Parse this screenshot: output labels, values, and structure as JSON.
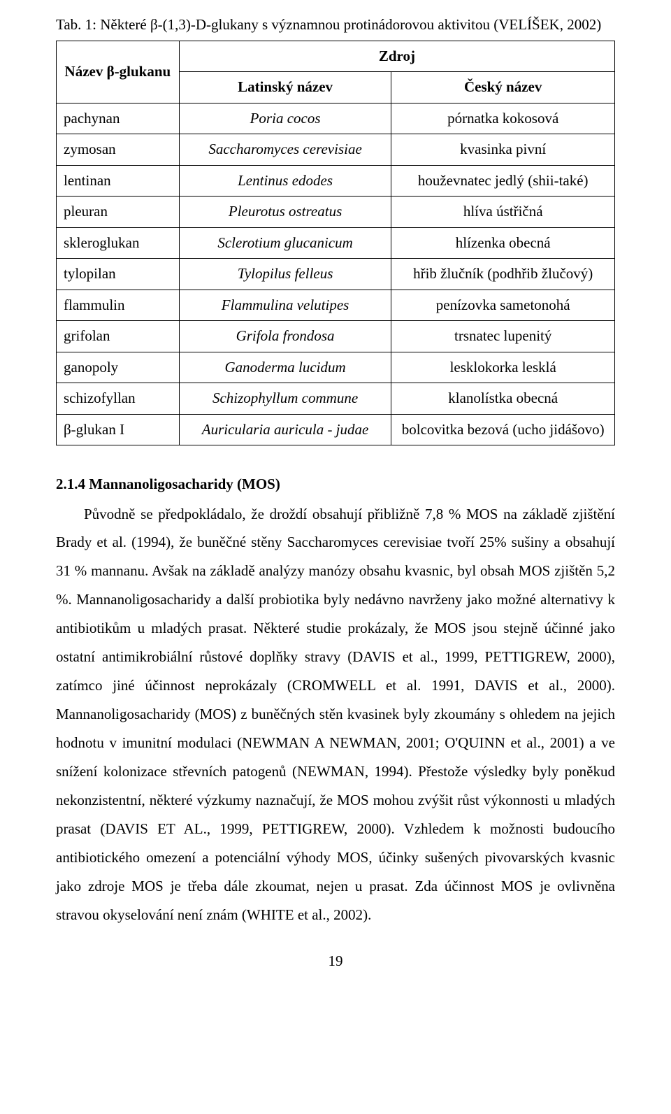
{
  "caption": "Tab. 1: Některé β-(1,3)-D-glukany s významnou protinádorovou aktivitou (VELÍŠEK, 2002)",
  "table": {
    "header": {
      "name": "Název β-glukanu",
      "source": "Zdroj",
      "latin": "Latinský název",
      "czech": "Český název"
    },
    "rows": [
      {
        "name": "pachynan",
        "latin": "Poria cocos",
        "czech": "pórnatka kokosová"
      },
      {
        "name": "zymosan",
        "latin": "Saccharomyces cerevisiae",
        "czech": "kvasinka pivní"
      },
      {
        "name": "lentinan",
        "latin": "Lentinus edodes",
        "czech": "houževnatec jedlý (shii-také)"
      },
      {
        "name": "pleuran",
        "latin": "Pleurotus ostreatus",
        "czech": "hlíva ústřičná"
      },
      {
        "name": "skleroglukan",
        "latin": "Sclerotium glucanicum",
        "czech": "hlízenka obecná"
      },
      {
        "name": "tylopilan",
        "latin": "Tylopilus felleus",
        "czech": "hřib žlučník (podhřib žlučový)"
      },
      {
        "name": "flammulin",
        "latin": "Flammulina velutipes",
        "czech": "penízovka sametonohá"
      },
      {
        "name": "grifolan",
        "latin": "Grifola frondosa",
        "czech": "trsnatec lupenitý"
      },
      {
        "name": "ganopoly",
        "latin": "Ganoderma lucidum",
        "czech": "lesklokorka lesklá"
      },
      {
        "name": "schizofyllan",
        "latin": "Schizophyllum commune",
        "czech": "klanolístka obecná"
      },
      {
        "name": "β-glukan I",
        "latin": "Auricularia auricula - judae",
        "czech": "bolcovitka bezová (ucho jidášovo)"
      }
    ]
  },
  "section": {
    "heading": "2.1.4 Mannanoligosacharidy (MOS)",
    "paragraph": "Původně se předpokládalo, že droždí obsahují přibližně 7,8 % MOS na základě zjištění Brady et al. (1994), že buněčné stěny Saccharomyces cerevisiae tvoří 25% sušiny a obsahují 31 % mannanu. Avšak na základě analýzy manózy obsahu kvasnic, byl obsah MOS zjištěn 5,2 %. Mannanoligosacharidy a další probiotika byly nedávno navrženy jako možné alternativy k antibiotikům u mladých prasat. Některé studie prokázaly, že MOS jsou stejně účinné jako ostatní antimikrobiální růstové doplňky stravy (DAVIS et al., 1999, PETTIGREW, 2000), zatímco jiné účinnost neprokázaly (CROMWELL et al. 1991, DAVIS et al., 2000). Mannanoligosacharidy (MOS) z buněčných stěn kvasinek byly zkoumány s ohledem na jejich hodnotu v imunitní modulaci (NEWMAN A NEWMAN, 2001; O'QUINN et al., 2001) a ve snížení kolonizace střevních patogenů (NEWMAN, 1994). Přestože výsledky byly poněkud nekonzistentní, některé výzkumy naznačují, že MOS mohou zvýšit růst výkonnosti u mladých prasat (DAVIS ET AL., 1999, PETTIGREW, 2000). Vzhledem k možnosti budoucího antibiotického omezení a potenciální výhody MOS, účinky sušených pivovarských kvasnic jako zdroje MOS je třeba dále zkoumat, nejen u prasat. Zda účinnost MOS je ovlivněna stravou okyselování není znám (WHITE et al., 2002)."
  },
  "page_number": "19"
}
